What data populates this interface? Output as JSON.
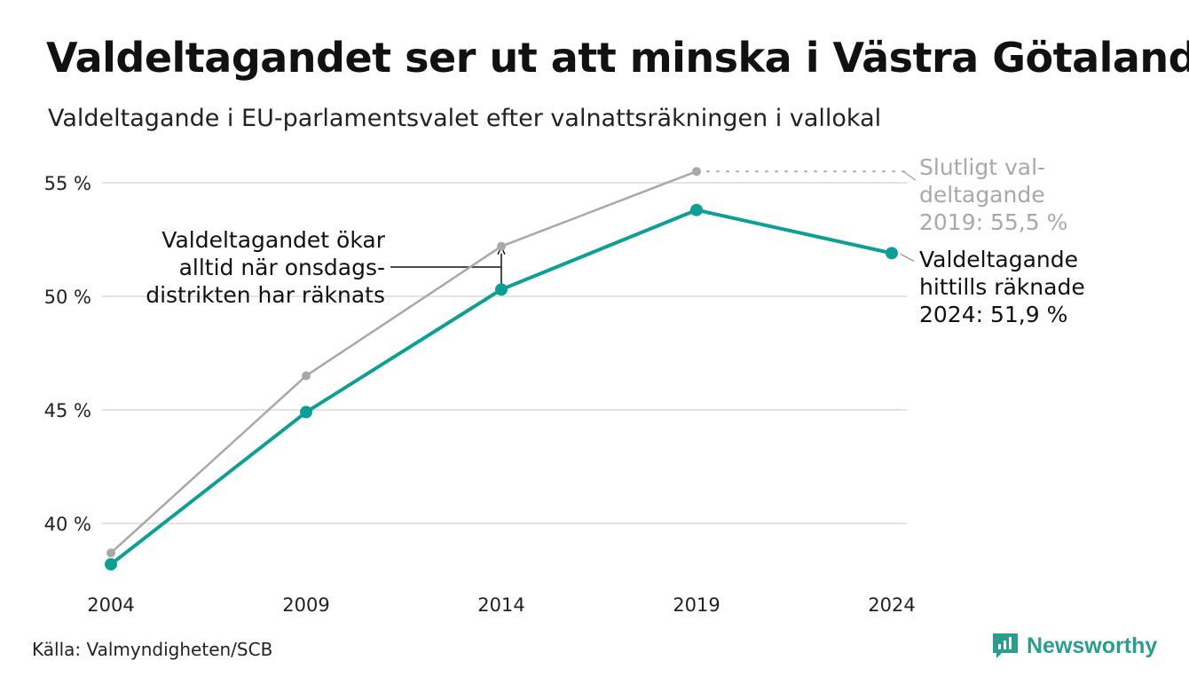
{
  "title": "Valdeltagandet ser ut att minska i Västra Götaland",
  "subtitle": "Valdeltagande i EU-parlamentsvalet efter valnattsräkningen i vallokal",
  "source": "Källa: Valmyndigheten/SCB",
  "logo": {
    "text": "Newsworthy",
    "icon": "newsworthy-logo-icon",
    "color": "#2a9d8f"
  },
  "annotations": {
    "final_2019": [
      "Slutligt val-",
      "deltagande",
      "2019: 55,5 %"
    ],
    "counted_2024": [
      "Valdeltagande",
      "hittills räknade",
      "2024: 51,9 %"
    ],
    "wednesday": [
      "Valdeltagandet ökar",
      "alltid när onsdags-",
      "distrikten har räknats"
    ]
  },
  "chart_data": {
    "type": "line",
    "x": [
      "2004",
      "2009",
      "2014",
      "2019",
      "2024"
    ],
    "ylim": [
      38,
      56
    ],
    "yticks": [
      40,
      45,
      50,
      55
    ],
    "ytick_labels": [
      "40 %",
      "45 %",
      "50 %",
      "55 %"
    ],
    "grid": true,
    "series": [
      {
        "key": "final",
        "values": [
          38.7,
          46.5,
          52.2,
          55.5,
          null
        ],
        "color": "#a8a8a8"
      },
      {
        "key": "election_night",
        "values": [
          38.2,
          44.9,
          50.3,
          53.8,
          51.9
        ],
        "color": "#0e9f94"
      }
    ]
  }
}
